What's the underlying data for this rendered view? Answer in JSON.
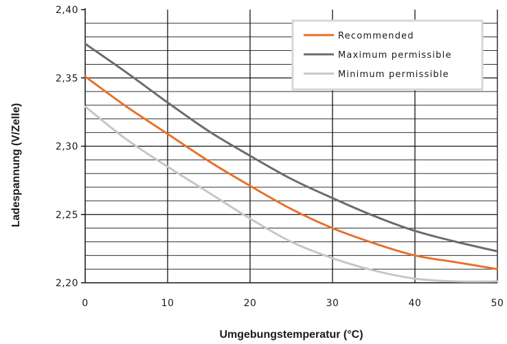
{
  "chart_data": {
    "type": "line",
    "title": "",
    "xlabel": "Umgebungstemperatur (°C)",
    "ylabel": "Ladespannung (V/Zelle)",
    "xlim": [
      0,
      50
    ],
    "ylim": [
      2.2,
      2.4
    ],
    "x_ticks": [
      0,
      10,
      20,
      30,
      40,
      50
    ],
    "x_tick_labels": [
      "0",
      "10",
      "20",
      "30",
      "40",
      "50"
    ],
    "y_ticks": [
      2.2,
      2.25,
      2.3,
      2.35,
      2.4
    ],
    "y_tick_labels": [
      "2,20",
      "2,25",
      "2,30",
      "2,35",
      "2,40"
    ],
    "grid": true,
    "legend_position": "top-right",
    "series": [
      {
        "name": "Recommended",
        "color": "#e8702a",
        "x": [
          0,
          5,
          10,
          15,
          20,
          25,
          30,
          35,
          40,
          45,
          50
        ],
        "y": [
          2.351,
          2.329,
          2.309,
          2.289,
          2.271,
          2.254,
          2.24,
          2.229,
          2.22,
          2.215,
          2.21
        ]
      },
      {
        "name": "Maximum permissible",
        "color": "#6b6b6b",
        "x": [
          0,
          5,
          10,
          15,
          20,
          25,
          30,
          35,
          40,
          45,
          50
        ],
        "y": [
          2.375,
          2.354,
          2.332,
          2.311,
          2.293,
          2.276,
          2.262,
          2.249,
          2.238,
          2.23,
          2.223
        ]
      },
      {
        "name": "Minimum permissible",
        "color": "#c6c6c6",
        "x": [
          0,
          5,
          10,
          15,
          20,
          25,
          30,
          35,
          40,
          45,
          50
        ],
        "y": [
          2.329,
          2.305,
          2.285,
          2.266,
          2.247,
          2.23,
          2.218,
          2.209,
          2.203,
          2.201,
          2.201
        ]
      }
    ]
  }
}
